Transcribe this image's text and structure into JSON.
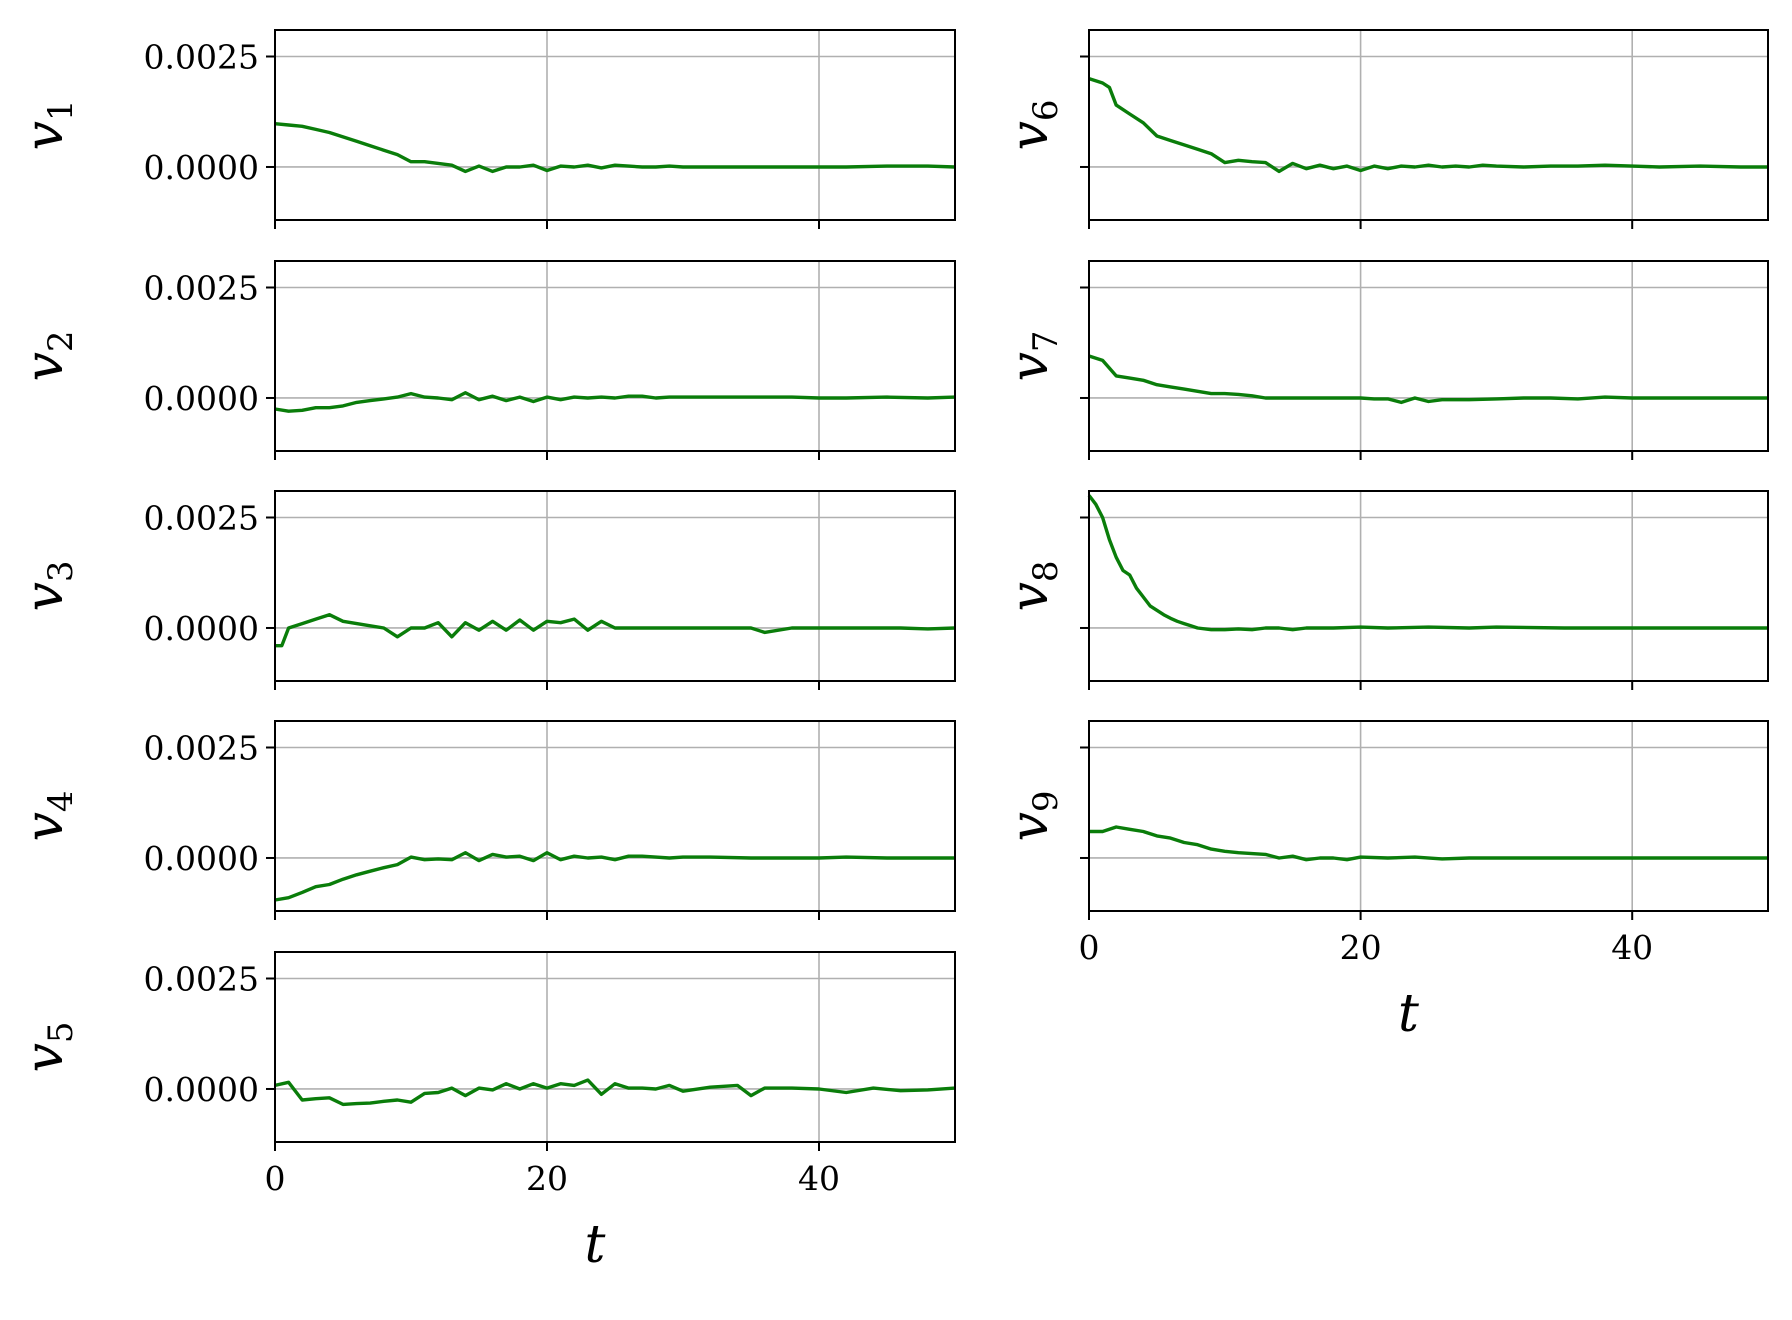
{
  "chart_data": [
    {
      "type": "line",
      "panel": "v1",
      "ylabel_main": "v",
      "ylabel_sub": "1",
      "xlim": [
        0,
        50
      ],
      "ylim": [
        -0.0012,
        0.0031
      ],
      "yticks": [
        "0.0025",
        "0.0000"
      ],
      "ytick_values": [
        0.0025,
        0
      ],
      "xticks": [
        "0",
        "20",
        "40"
      ],
      "xtick_values": [
        0,
        20,
        40
      ],
      "show_xticklabels": false,
      "show_yticklabels": true,
      "xlabel": "",
      "grid": true,
      "color": "#0a7d0a",
      "x": [
        0,
        1,
        2,
        3,
        4,
        5,
        6,
        7,
        8,
        9,
        10,
        11,
        12,
        13,
        14,
        15,
        16,
        17,
        18,
        19,
        20,
        21,
        22,
        23,
        24,
        25,
        26,
        27,
        28,
        29,
        30,
        32,
        35,
        38,
        40,
        42,
        45,
        48,
        50
      ],
      "y": [
        0.00098,
        0.00095,
        0.00092,
        0.00085,
        0.00078,
        0.00068,
        0.00058,
        0.00048,
        0.00038,
        0.00028,
        0.00012,
        0.00012,
        8e-05,
        4e-05,
        -0.0001,
        2e-05,
        -0.0001,
        0.0,
        0.0,
        4e-05,
        -8e-05,
        2e-05,
        0.0,
        4e-05,
        -2e-05,
        4e-05,
        2e-05,
        0.0,
        0.0,
        2e-05,
        0.0,
        0.0,
        0.0,
        0.0,
        0.0,
        0.0,
        2e-05,
        2e-05,
        0.0
      ]
    },
    {
      "type": "line",
      "panel": "v2",
      "ylabel_main": "v",
      "ylabel_sub": "2",
      "xlim": [
        0,
        50
      ],
      "ylim": [
        -0.0012,
        0.0031
      ],
      "yticks": [
        "0.0025",
        "0.0000"
      ],
      "ytick_values": [
        0.0025,
        0
      ],
      "xticks": [
        "0",
        "20",
        "40"
      ],
      "xtick_values": [
        0,
        20,
        40
      ],
      "show_xticklabels": false,
      "show_yticklabels": true,
      "xlabel": "",
      "grid": true,
      "color": "#0a7d0a",
      "x": [
        0,
        1,
        2,
        3,
        4,
        5,
        6,
        7,
        8,
        9,
        10,
        11,
        12,
        13,
        14,
        15,
        16,
        17,
        18,
        19,
        20,
        21,
        22,
        23,
        24,
        25,
        26,
        27,
        28,
        29,
        30,
        32,
        35,
        38,
        40,
        42,
        45,
        48,
        50
      ],
      "y": [
        -0.00025,
        -0.0003,
        -0.00028,
        -0.00022,
        -0.00022,
        -0.00018,
        -0.0001,
        -6e-05,
        -2e-05,
        2e-05,
        0.0001,
        2e-05,
        0.0,
        -4e-05,
        0.00012,
        -4e-05,
        4e-05,
        -6e-05,
        2e-05,
        -8e-05,
        2e-05,
        -4e-05,
        2e-05,
        0.0,
        2e-05,
        0.0,
        4e-05,
        4e-05,
        0.0,
        2e-05,
        2e-05,
        2e-05,
        2e-05,
        2e-05,
        0.0,
        0.0,
        2e-05,
        0.0,
        2e-05
      ]
    },
    {
      "type": "line",
      "panel": "v3",
      "ylabel_main": "v",
      "ylabel_sub": "3",
      "xlim": [
        0,
        50
      ],
      "ylim": [
        -0.0012,
        0.0031
      ],
      "yticks": [
        "0.0025",
        "0.0000"
      ],
      "ytick_values": [
        0.0025,
        0
      ],
      "xticks": [
        "0",
        "20",
        "40"
      ],
      "xtick_values": [
        0,
        20,
        40
      ],
      "show_xticklabels": false,
      "show_yticklabels": true,
      "xlabel": "",
      "grid": true,
      "color": "#0a7d0a",
      "x": [
        0,
        0.5,
        1,
        2,
        3,
        4,
        5,
        6,
        7,
        8,
        9,
        10,
        11,
        12,
        13,
        14,
        15,
        16,
        17,
        18,
        19,
        20,
        21,
        22,
        23,
        24,
        25,
        26,
        27,
        28,
        29,
        30,
        32,
        34,
        35,
        36,
        38,
        40,
        42,
        44,
        46,
        48,
        50
      ],
      "y": [
        -0.0004,
        -0.0004,
        0.0,
        0.0001,
        0.0002,
        0.0003,
        0.00015,
        0.0001,
        5e-05,
        0.0,
        -0.0002,
        0.0,
        0.0,
        0.00012,
        -0.0002,
        0.00012,
        -5e-05,
        0.00015,
        -5e-05,
        0.00018,
        -5e-05,
        0.00015,
        0.00012,
        0.0002,
        -5e-05,
        0.00015,
        0.0,
        0.0,
        0.0,
        0.0,
        0.0,
        0.0,
        0.0,
        0.0,
        0.0,
        -0.0001,
        0.0,
        0.0,
        0.0,
        0.0,
        0.0,
        -2e-05,
        0.0
      ]
    },
    {
      "type": "line",
      "panel": "v4",
      "ylabel_main": "v",
      "ylabel_sub": "4",
      "xlim": [
        0,
        50
      ],
      "ylim": [
        -0.0012,
        0.0031
      ],
      "yticks": [
        "0.0025",
        "0.0000"
      ],
      "ytick_values": [
        0.0025,
        0
      ],
      "xticks": [
        "0",
        "20",
        "40"
      ],
      "xtick_values": [
        0,
        20,
        40
      ],
      "show_xticklabels": false,
      "show_yticklabels": true,
      "xlabel": "",
      "grid": true,
      "color": "#0a7d0a",
      "x": [
        0,
        1,
        2,
        3,
        4,
        5,
        6,
        7,
        8,
        9,
        10,
        11,
        12,
        13,
        14,
        15,
        16,
        17,
        18,
        19,
        20,
        21,
        22,
        23,
        24,
        25,
        26,
        27,
        28,
        29,
        30,
        32,
        35,
        38,
        40,
        42,
        45,
        48,
        50
      ],
      "y": [
        -0.00095,
        -0.0009,
        -0.00078,
        -0.00065,
        -0.0006,
        -0.00048,
        -0.00038,
        -0.0003,
        -0.00022,
        -0.00015,
        2e-05,
        -4e-05,
        -2e-05,
        -4e-05,
        0.00012,
        -6e-05,
        8e-05,
        2e-05,
        4e-05,
        -6e-05,
        0.00012,
        -4e-05,
        4e-05,
        0.0,
        2e-05,
        -4e-05,
        4e-05,
        4e-05,
        2e-05,
        0.0,
        2e-05,
        2e-05,
        0.0,
        0.0,
        0.0,
        2e-05,
        0.0,
        0.0,
        0.0
      ]
    },
    {
      "type": "line",
      "panel": "v5",
      "ylabel_main": "v",
      "ylabel_sub": "5",
      "xlim": [
        0,
        50
      ],
      "ylim": [
        -0.0012,
        0.0031
      ],
      "yticks": [
        "0.0025",
        "0.0000"
      ],
      "ytick_values": [
        0.0025,
        0
      ],
      "xticks": [
        "0",
        "20",
        "40"
      ],
      "xtick_values": [
        0,
        20,
        40
      ],
      "show_xticklabels": true,
      "show_yticklabels": true,
      "xlabel": "t",
      "grid": true,
      "color": "#0a7d0a",
      "x": [
        0,
        1,
        2,
        3,
        4,
        5,
        6,
        7,
        8,
        9,
        10,
        11,
        12,
        13,
        14,
        15,
        16,
        17,
        18,
        19,
        20,
        21,
        22,
        23,
        24,
        25,
        26,
        27,
        28,
        29,
        30,
        32,
        34,
        35,
        36,
        38,
        40,
        42,
        44,
        46,
        48,
        50
      ],
      "y": [
        8e-05,
        0.00015,
        -0.00025,
        -0.00022,
        -0.0002,
        -0.00035,
        -0.00033,
        -0.00032,
        -0.00028,
        -0.00025,
        -0.0003,
        -0.0001,
        -8e-05,
        2e-05,
        -0.00015,
        2e-05,
        -2e-05,
        0.00012,
        0.0,
        0.00012,
        2e-05,
        0.00012,
        8e-05,
        0.0002,
        -0.00012,
        0.00012,
        2e-05,
        2e-05,
        0.0,
        8e-05,
        -5e-05,
        4e-05,
        8e-05,
        -0.00015,
        2e-05,
        2e-05,
        0.0,
        -8e-05,
        2e-05,
        -4e-05,
        -2e-05,
        2e-05
      ]
    },
    {
      "type": "line",
      "panel": "v6",
      "ylabel_main": "v",
      "ylabel_sub": "6",
      "xlim": [
        0,
        50
      ],
      "ylim": [
        -0.0012,
        0.0031
      ],
      "yticks": [
        "",
        ""
      ],
      "ytick_values": [
        0.0025,
        0
      ],
      "xticks": [
        "0",
        "20",
        "40"
      ],
      "xtick_values": [
        0,
        20,
        40
      ],
      "show_xticklabels": false,
      "show_yticklabels": false,
      "xlabel": "",
      "grid": true,
      "color": "#0a7d0a",
      "x": [
        0,
        1,
        1.5,
        2,
        3,
        4,
        5,
        6,
        7,
        8,
        9,
        10,
        11,
        12,
        13,
        14,
        15,
        16,
        17,
        18,
        19,
        20,
        21,
        22,
        23,
        24,
        25,
        26,
        27,
        28,
        29,
        30,
        32,
        34,
        36,
        38,
        40,
        42,
        45,
        48,
        50
      ],
      "y": [
        0.002,
        0.0019,
        0.0018,
        0.0014,
        0.0012,
        0.001,
        0.0007,
        0.0006,
        0.0005,
        0.0004,
        0.0003,
        0.0001,
        0.00015,
        0.00012,
        0.0001,
        -0.0001,
        8e-05,
        -4e-05,
        4e-05,
        -4e-05,
        2e-05,
        -8e-05,
        2e-05,
        -4e-05,
        2e-05,
        0.0,
        4e-05,
        0.0,
        2e-05,
        0.0,
        4e-05,
        2e-05,
        0.0,
        2e-05,
        2e-05,
        4e-05,
        2e-05,
        0.0,
        2e-05,
        0.0,
        0.0
      ]
    },
    {
      "type": "line",
      "panel": "v7",
      "ylabel_main": "v",
      "ylabel_sub": "7",
      "xlim": [
        0,
        50
      ],
      "ylim": [
        -0.0012,
        0.0031
      ],
      "yticks": [
        "",
        ""
      ],
      "ytick_values": [
        0.0025,
        0
      ],
      "xticks": [
        "0",
        "20",
        "40"
      ],
      "xtick_values": [
        0,
        20,
        40
      ],
      "show_xticklabels": false,
      "show_yticklabels": false,
      "xlabel": "",
      "grid": true,
      "color": "#0a7d0a",
      "x": [
        0,
        1,
        2,
        3,
        4,
        5,
        6,
        7,
        8,
        9,
        10,
        11,
        12,
        13,
        14,
        15,
        16,
        17,
        18,
        19,
        20,
        21,
        22,
        23,
        24,
        25,
        26,
        28,
        30,
        32,
        34,
        36,
        38,
        40,
        42,
        45,
        48,
        50
      ],
      "y": [
        0.00095,
        0.00085,
        0.0005,
        0.00045,
        0.0004,
        0.0003,
        0.00025,
        0.0002,
        0.00015,
        0.0001,
        0.0001,
        8e-05,
        5e-05,
        0.0,
        0.0,
        0.0,
        0.0,
        0.0,
        0.0,
        0.0,
        0.0,
        -2e-05,
        -2e-05,
        -0.0001,
        0.0,
        -8e-05,
        -4e-05,
        -4e-05,
        -2e-05,
        0.0,
        0.0,
        -2e-05,
        2e-05,
        0.0,
        0.0,
        0.0,
        0.0,
        0.0
      ]
    },
    {
      "type": "line",
      "panel": "v8",
      "ylabel_main": "v",
      "ylabel_sub": "8",
      "xlim": [
        0,
        50
      ],
      "ylim": [
        -0.0012,
        0.0031
      ],
      "yticks": [
        "",
        ""
      ],
      "ytick_values": [
        0.0025,
        0
      ],
      "xticks": [
        "0",
        "20",
        "40"
      ],
      "xtick_values": [
        0,
        20,
        40
      ],
      "show_xticklabels": false,
      "show_yticklabels": false,
      "xlabel": "",
      "grid": true,
      "color": "#0a7d0a",
      "x": [
        0,
        0.5,
        1,
        1.5,
        2,
        2.5,
        3,
        3.5,
        4,
        4.5,
        5,
        5.5,
        6,
        6.5,
        7,
        7.5,
        8,
        9,
        10,
        11,
        12,
        13,
        14,
        15,
        16,
        18,
        20,
        22,
        25,
        28,
        30,
        35,
        40,
        45,
        50
      ],
      "y": [
        0.003,
        0.0028,
        0.0025,
        0.002,
        0.0016,
        0.0013,
        0.0012,
        0.0009,
        0.0007,
        0.0005,
        0.0004,
        0.0003,
        0.00022,
        0.00015,
        0.0001,
        5e-05,
        0.0,
        -4e-05,
        -4e-05,
        -2e-05,
        -4e-05,
        0.0,
        0.0,
        -4e-05,
        0.0,
        0.0,
        2e-05,
        0.0,
        2e-05,
        0.0,
        2e-05,
        0.0,
        0.0,
        0.0,
        0.0
      ]
    },
    {
      "type": "line",
      "panel": "v9",
      "ylabel_main": "v",
      "ylabel_sub": "9",
      "xlim": [
        0,
        50
      ],
      "ylim": [
        -0.0012,
        0.0031
      ],
      "yticks": [
        "",
        ""
      ],
      "ytick_values": [
        0.0025,
        0
      ],
      "xticks": [
        "0",
        "20",
        "40"
      ],
      "xtick_values": [
        0,
        20,
        40
      ],
      "show_xticklabels": true,
      "show_yticklabels": false,
      "xlabel": "t",
      "grid": true,
      "color": "#0a7d0a",
      "x": [
        0,
        1,
        2,
        3,
        4,
        5,
        6,
        7,
        8,
        9,
        10,
        11,
        12,
        13,
        14,
        15,
        16,
        17,
        18,
        19,
        20,
        22,
        24,
        26,
        28,
        30,
        32,
        35,
        38,
        40,
        42,
        45,
        48,
        50
      ],
      "y": [
        0.0006,
        0.0006,
        0.0007,
        0.00065,
        0.0006,
        0.0005,
        0.00045,
        0.00035,
        0.0003,
        0.0002,
        0.00015,
        0.00012,
        0.0001,
        8e-05,
        0.0,
        4e-05,
        -4e-05,
        0.0,
        0.0,
        -4e-05,
        2e-05,
        0.0,
        2e-05,
        -2e-05,
        0.0,
        0.0,
        0.0,
        0.0,
        0.0,
        0.0,
        0.0,
        0.0,
        0.0,
        0.0
      ]
    }
  ]
}
